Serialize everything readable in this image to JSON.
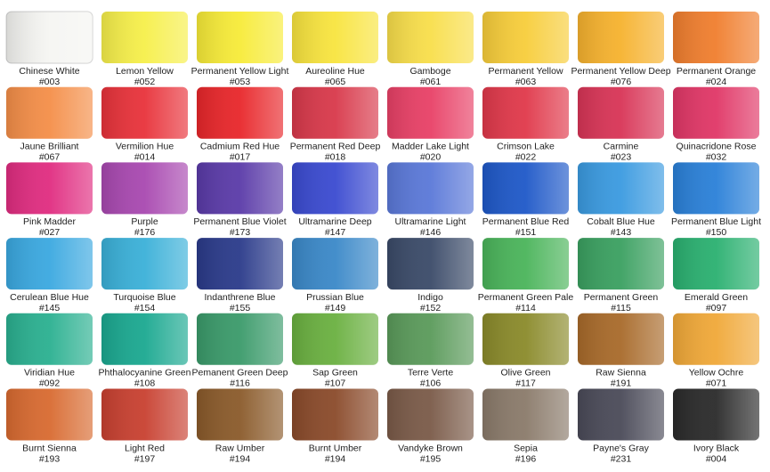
{
  "swatches": [
    {
      "name": "Chinese White",
      "code": "#003",
      "color": "#f5f5f2"
    },
    {
      "name": "Lemon Yellow",
      "code": "#052",
      "color": "#f6ef4a"
    },
    {
      "name": "Permanent Yellow Light",
      "code": "#053",
      "color": "#f7eb38"
    },
    {
      "name": "Aureoline Hue",
      "code": "#065",
      "color": "#f8e43e"
    },
    {
      "name": "Gamboge",
      "code": "#061",
      "color": "#f8de4a"
    },
    {
      "name": "Permanent Yellow",
      "code": "#063",
      "color": "#f7cd3a"
    },
    {
      "name": "Permanent Yellow Deep",
      "code": "#076",
      "color": "#f6b22e"
    },
    {
      "name": "Permanent Orange",
      "code": "#024",
      "color": "#f07e2e"
    },
    {
      "name": "Jaune Brilliant",
      "code": "#067",
      "color": "#f48e48"
    },
    {
      "name": "Vermilion Hue",
      "code": "#014",
      "color": "#e8323a"
    },
    {
      "name": "Cadmium Red Hue",
      "code": "#017",
      "color": "#e8262a"
    },
    {
      "name": "Permanent Red Deep",
      "code": "#018",
      "color": "#d8384a"
    },
    {
      "name": "Madder Lake Light",
      "code": "#020",
      "color": "#e84066"
    },
    {
      "name": "Crimson Lake",
      "code": "#022",
      "color": "#e0384a"
    },
    {
      "name": "Carmine",
      "code": "#023",
      "color": "#d83456"
    },
    {
      "name": "Quinacridone Rose",
      "code": "#032",
      "color": "#e03666"
    },
    {
      "name": "Pink Madder",
      "code": "#027",
      "color": "#e02c80"
    },
    {
      "name": "Purple",
      "code": "#176",
      "color": "#a848b0"
    },
    {
      "name": "Permanent Blue Violet",
      "code": "#173",
      "color": "#5a3aa8"
    },
    {
      "name": "Ultramarine Deep",
      "code": "#147",
      "color": "#3a4ad0"
    },
    {
      "name": "Ultramarine Light",
      "code": "#146",
      "color": "#5a78d8"
    },
    {
      "name": "Permanent Blue Red",
      "code": "#151",
      "color": "#1e58c8"
    },
    {
      "name": "Cobalt Blue Hue",
      "code": "#143",
      "color": "#3a9ae0"
    },
    {
      "name": "Permanent Blue Light",
      "code": "#150",
      "color": "#2a80d8"
    },
    {
      "name": "Cerulean Blue Hue",
      "code": "#145",
      "color": "#3aa8e0"
    },
    {
      "name": "Turquoise Blue",
      "code": "#154",
      "color": "#3ab0d8"
    },
    {
      "name": "Indanthrene Blue",
      "code": "#155",
      "color": "#2a3a8a"
    },
    {
      "name": "Prussian Blue",
      "code": "#149",
      "color": "#3a88c8"
    },
    {
      "name": "Indigo",
      "code": "#152",
      "color": "#3a4a68"
    },
    {
      "name": "Permanent Green Pale",
      "code": "#114",
      "color": "#4ab45a"
    },
    {
      "name": "Permanent Green",
      "code": "#115",
      "color": "#3aa060"
    },
    {
      "name": "Emerald Green",
      "code": "#097",
      "color": "#2ab070"
    },
    {
      "name": "Viridian Hue",
      "code": "#092",
      "color": "#2ab090"
    },
    {
      "name": "Phthalocyanine Green",
      "code": "#108",
      "color": "#1aa890"
    },
    {
      "name": "Pemanent Green Deep",
      "code": "#116",
      "color": "#3a9a6a"
    },
    {
      "name": "Sap Green",
      "code": "#107",
      "color": "#6ab040"
    },
    {
      "name": "Terre Verte",
      "code": "#106",
      "color": "#5a9a5a"
    },
    {
      "name": "Olive Green",
      "code": "#117",
      "color": "#8a8a2a"
    },
    {
      "name": "Raw Sienna",
      "code": "#191",
      "color": "#a86a2a"
    },
    {
      "name": "Yellow Ochre",
      "code": "#071",
      "color": "#f0a838"
    },
    {
      "name": "Burnt Sienna",
      "code": "#193",
      "color": "#d86a30"
    },
    {
      "name": "Light Red",
      "code": "#197",
      "color": "#c84030"
    },
    {
      "name": "Raw Umber",
      "code": "#194",
      "color": "#8a5a2a"
    },
    {
      "name": "Burnt Umber",
      "code": "#194",
      "color": "#8a4a2a"
    },
    {
      "name": "Vandyke Brown",
      "code": "#195",
      "color": "#7a5a48"
    },
    {
      "name": "Sepia",
      "code": "#196",
      "color": "#8a7a6a"
    },
    {
      "name": "Payne's Gray",
      "code": "#231",
      "color": "#4a4a58"
    },
    {
      "name": "Ivory Black",
      "code": "#004",
      "color": "#2a2a2a"
    }
  ]
}
